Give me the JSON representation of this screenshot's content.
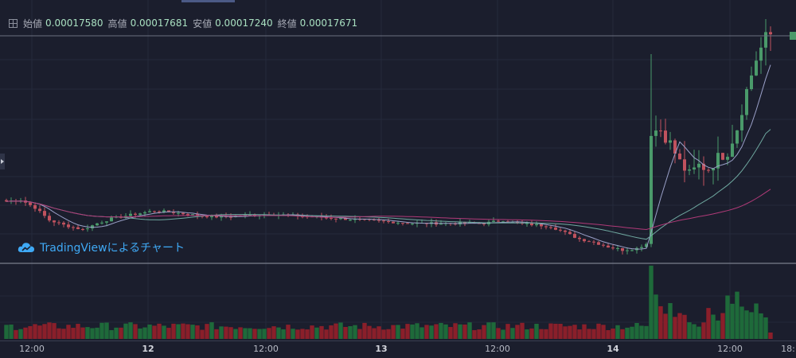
{
  "legend": {
    "open_label": "始値",
    "open_value": "0.00017580",
    "high_label": "高値",
    "high_value": "0.00017681",
    "low_label": "安値",
    "low_value": "0.00017240",
    "close_label": "終値",
    "close_value": "0.00017671"
  },
  "watermark": "TradingViewによるチャート",
  "colors": {
    "background": "#1b1e2d",
    "up": "#4a9a6a",
    "down": "#c0525e",
    "volume_up": "#1e6a3a",
    "volume_down": "#8a1f2a",
    "ma_fast": "#9aa0c8",
    "ma_mid": "#6fa8a0",
    "ma_slow": "#b03a78"
  },
  "chart_data": {
    "type": "candlestick",
    "x_ticks": [
      "12:00",
      "12",
      "12:00",
      "13",
      "12:00",
      "14",
      "12:00",
      "18:"
    ],
    "y_scale": "linear",
    "grid": true,
    "anchors": [
      [
        0,
        0.0001235
      ],
      [
        3,
        0.000124
      ],
      [
        6,
        0.0001215
      ],
      [
        9,
        0.0001175
      ],
      [
        12,
        0.000116
      ],
      [
        16,
        0.0001145
      ],
      [
        19,
        0.0001165
      ],
      [
        22,
        0.000118
      ],
      [
        27,
        0.0001195
      ],
      [
        31,
        0.0001205
      ],
      [
        35,
        0.00012
      ],
      [
        40,
        0.000119
      ],
      [
        45,
        0.0001185
      ],
      [
        50,
        0.000119
      ],
      [
        55,
        0.0001195
      ],
      [
        60,
        0.000119
      ],
      [
        65,
        0.0001185
      ],
      [
        70,
        0.000118
      ],
      [
        75,
        0.0001175
      ],
      [
        80,
        0.000117
      ],
      [
        85,
        0.0001165
      ],
      [
        90,
        0.0001165
      ],
      [
        95,
        0.0001165
      ],
      [
        100,
        0.0001165
      ],
      [
        104,
        0.0001175
      ],
      [
        107,
        0.0001165
      ],
      [
        111,
        0.000116
      ],
      [
        114,
        0.0001155
      ],
      [
        117,
        0.0001135
      ],
      [
        120,
        0.0001115
      ],
      [
        123,
        0.0001105
      ],
      [
        126,
        0.000109
      ],
      [
        129,
        0.000108
      ],
      [
        132,
        0.0001085
      ],
      [
        134,
        0.00011
      ],
      [
        135,
        0.000146
      ],
      [
        137,
        0.0001465
      ],
      [
        139,
        0.000142
      ],
      [
        141,
        0.000136
      ],
      [
        143,
        0.000132
      ],
      [
        145,
        0.000135
      ],
      [
        147,
        0.000134
      ],
      [
        149,
        0.0001375
      ],
      [
        151,
        0.0001395
      ],
      [
        153,
        0.000147
      ],
      [
        155,
        0.000159
      ],
      [
        157,
        0.000169
      ],
      [
        159,
        0.000176
      ],
      [
        160,
        0.0001768
      ]
    ],
    "ma_endpoints": {
      "fast": 0.00017,
      "mid": 0.0001455,
      "slow": 0.000133
    },
    "volume": {
      "baseline": "low",
      "spike_at": 135
    }
  }
}
